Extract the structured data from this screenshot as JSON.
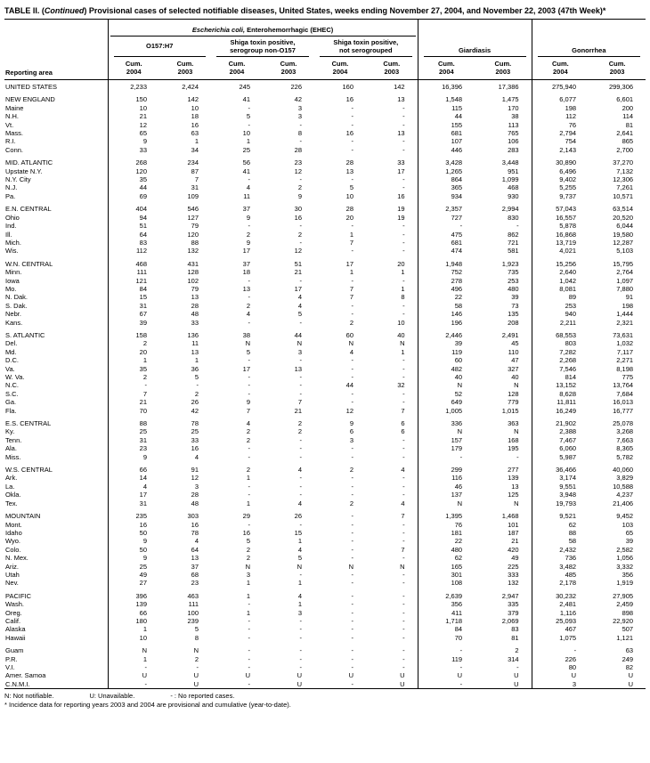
{
  "title": {
    "part1": "TABLE II. (",
    "continued": "Continued",
    "part2": ") Provisional cases of selected notifiable diseases, United States, weeks ending November 27, 2004, and November 22, 2003 (47th Week)*"
  },
  "table": {
    "header": {
      "reporting_area": "Reporting area",
      "ehec_italic": "Escherichia coli,",
      "ehec_rest": " Enterohemorrhagic (EHEC)",
      "sub_o157": "O157:H7",
      "sub_non_o157_line1": "Shiga toxin positive,",
      "sub_non_o157_line2": "serogroup non-O157",
      "sub_not_sero_line1": "Shiga toxin positive,",
      "sub_not_sero_line2": "not serogrouped",
      "giardiasis": "Giardiasis",
      "gonorrhea": "Gonorrhea",
      "cum": "Cum.",
      "years": [
        "2004",
        "2003"
      ]
    },
    "rows": [
      {
        "a": "UNITED STATES",
        "v": [
          "2,233",
          "2,424",
          "245",
          "226",
          "160",
          "142",
          "16,396",
          "17,386",
          "275,940",
          "299,306"
        ]
      },
      {
        "gap": true
      },
      {
        "a": "NEW ENGLAND",
        "v": [
          "150",
          "142",
          "41",
          "42",
          "16",
          "13",
          "1,548",
          "1,475",
          "6,077",
          "6,601"
        ]
      },
      {
        "a": "Maine",
        "v": [
          "10",
          "10",
          "-",
          "3",
          "-",
          "-",
          "115",
          "170",
          "198",
          "200"
        ]
      },
      {
        "a": "N.H.",
        "v": [
          "21",
          "18",
          "5",
          "3",
          "-",
          "-",
          "44",
          "38",
          "112",
          "114"
        ]
      },
      {
        "a": "Vt.",
        "v": [
          "12",
          "16",
          "-",
          "-",
          "-",
          "-",
          "155",
          "113",
          "76",
          "81"
        ]
      },
      {
        "a": "Mass.",
        "v": [
          "65",
          "63",
          "10",
          "8",
          "16",
          "13",
          "681",
          "765",
          "2,794",
          "2,641"
        ]
      },
      {
        "a": "R.I.",
        "v": [
          "9",
          "1",
          "1",
          "-",
          "-",
          "-",
          "107",
          "106",
          "754",
          "865"
        ]
      },
      {
        "a": "Conn.",
        "v": [
          "33",
          "34",
          "25",
          "28",
          "-",
          "-",
          "446",
          "283",
          "2,143",
          "2,700"
        ]
      },
      {
        "gap": true
      },
      {
        "a": "MID. ATLANTIC",
        "v": [
          "268",
          "234",
          "56",
          "23",
          "28",
          "33",
          "3,428",
          "3,448",
          "30,890",
          "37,270"
        ]
      },
      {
        "a": "Upstate N.Y.",
        "v": [
          "120",
          "87",
          "41",
          "12",
          "13",
          "17",
          "1,265",
          "951",
          "6,496",
          "7,132"
        ]
      },
      {
        "a": "N.Y. City",
        "v": [
          "35",
          "7",
          "-",
          "-",
          "-",
          "-",
          "864",
          "1,099",
          "9,402",
          "12,306"
        ]
      },
      {
        "a": "N.J.",
        "v": [
          "44",
          "31",
          "4",
          "2",
          "5",
          "-",
          "365",
          "468",
          "5,255",
          "7,261"
        ]
      },
      {
        "a": "Pa.",
        "v": [
          "69",
          "109",
          "11",
          "9",
          "10",
          "16",
          "934",
          "930",
          "9,737",
          "10,571"
        ]
      },
      {
        "gap": true
      },
      {
        "a": "E.N. CENTRAL",
        "v": [
          "404",
          "546",
          "37",
          "30",
          "28",
          "19",
          "2,357",
          "2,994",
          "57,043",
          "63,514"
        ]
      },
      {
        "a": "Ohio",
        "v": [
          "94",
          "127",
          "9",
          "16",
          "20",
          "19",
          "727",
          "830",
          "16,557",
          "20,520"
        ]
      },
      {
        "a": "Ind.",
        "v": [
          "51",
          "79",
          "-",
          "-",
          "-",
          "-",
          "-",
          "-",
          "5,878",
          "6,044"
        ]
      },
      {
        "a": "Ill.",
        "v": [
          "64",
          "120",
          "2",
          "2",
          "1",
          "-",
          "475",
          "862",
          "16,868",
          "19,580"
        ]
      },
      {
        "a": "Mich.",
        "v": [
          "83",
          "88",
          "9",
          "-",
          "7",
          "-",
          "681",
          "721",
          "13,719",
          "12,287"
        ]
      },
      {
        "a": "Wis.",
        "v": [
          "112",
          "132",
          "17",
          "12",
          "-",
          "-",
          "474",
          "581",
          "4,021",
          "5,103"
        ]
      },
      {
        "gap": true
      },
      {
        "a": "W.N. CENTRAL",
        "v": [
          "468",
          "431",
          "37",
          "51",
          "17",
          "20",
          "1,948",
          "1,923",
          "15,256",
          "15,795"
        ]
      },
      {
        "a": "Minn.",
        "v": [
          "111",
          "128",
          "18",
          "21",
          "1",
          "1",
          "752",
          "735",
          "2,640",
          "2,764"
        ]
      },
      {
        "a": "Iowa",
        "v": [
          "121",
          "102",
          "-",
          "-",
          "-",
          "-",
          "278",
          "253",
          "1,042",
          "1,097"
        ]
      },
      {
        "a": "Mo.",
        "v": [
          "84",
          "79",
          "13",
          "17",
          "7",
          "1",
          "496",
          "480",
          "8,081",
          "7,880"
        ]
      },
      {
        "a": "N. Dak.",
        "v": [
          "15",
          "13",
          "-",
          "4",
          "7",
          "8",
          "22",
          "39",
          "89",
          "91"
        ]
      },
      {
        "a": "S. Dak.",
        "v": [
          "31",
          "28",
          "2",
          "4",
          "-",
          "-",
          "58",
          "73",
          "253",
          "198"
        ]
      },
      {
        "a": "Nebr.",
        "v": [
          "67",
          "48",
          "4",
          "5",
          "-",
          "-",
          "146",
          "135",
          "940",
          "1,444"
        ]
      },
      {
        "a": "Kans.",
        "v": [
          "39",
          "33",
          "-",
          "-",
          "2",
          "10",
          "196",
          "208",
          "2,211",
          "2,321"
        ]
      },
      {
        "gap": true
      },
      {
        "a": "S. ATLANTIC",
        "v": [
          "158",
          "136",
          "38",
          "44",
          "60",
          "40",
          "2,446",
          "2,491",
          "68,553",
          "73,631"
        ]
      },
      {
        "a": "Del.",
        "v": [
          "2",
          "11",
          "N",
          "N",
          "N",
          "N",
          "39",
          "45",
          "803",
          "1,032"
        ]
      },
      {
        "a": "Md.",
        "v": [
          "20",
          "13",
          "5",
          "3",
          "4",
          "1",
          "119",
          "110",
          "7,282",
          "7,117"
        ]
      },
      {
        "a": "D.C.",
        "v": [
          "1",
          "1",
          "-",
          "-",
          "-",
          "-",
          "60",
          "47",
          "2,268",
          "2,271"
        ]
      },
      {
        "a": "Va.",
        "v": [
          "35",
          "36",
          "17",
          "13",
          "-",
          "-",
          "482",
          "327",
          "7,546",
          "8,198"
        ]
      },
      {
        "a": "W. Va.",
        "v": [
          "2",
          "5",
          "-",
          "-",
          "-",
          "-",
          "40",
          "40",
          "814",
          "775"
        ]
      },
      {
        "a": "N.C.",
        "v": [
          "-",
          "-",
          "-",
          "-",
          "44",
          "32",
          "N",
          "N",
          "13,152",
          "13,764"
        ]
      },
      {
        "a": "S.C.",
        "v": [
          "7",
          "2",
          "-",
          "-",
          "-",
          "-",
          "52",
          "128",
          "8,628",
          "7,684"
        ]
      },
      {
        "a": "Ga.",
        "v": [
          "21",
          "26",
          "9",
          "7",
          "-",
          "-",
          "649",
          "779",
          "11,811",
          "16,013"
        ]
      },
      {
        "a": "Fla.",
        "v": [
          "70",
          "42",
          "7",
          "21",
          "12",
          "7",
          "1,005",
          "1,015",
          "16,249",
          "16,777"
        ]
      },
      {
        "gap": true
      },
      {
        "a": "E.S. CENTRAL",
        "v": [
          "88",
          "78",
          "4",
          "2",
          "9",
          "6",
          "336",
          "363",
          "21,902",
          "25,078"
        ]
      },
      {
        "a": "Ky.",
        "v": [
          "25",
          "25",
          "2",
          "2",
          "6",
          "6",
          "N",
          "N",
          "2,388",
          "3,268"
        ]
      },
      {
        "a": "Tenn.",
        "v": [
          "31",
          "33",
          "2",
          "-",
          "3",
          "-",
          "157",
          "168",
          "7,467",
          "7,663"
        ]
      },
      {
        "a": "Ala.",
        "v": [
          "23",
          "16",
          "-",
          "-",
          "-",
          "-",
          "179",
          "195",
          "6,060",
          "8,365"
        ]
      },
      {
        "a": "Miss.",
        "v": [
          "9",
          "4",
          "-",
          "-",
          "-",
          "-",
          "-",
          "-",
          "5,987",
          "5,782"
        ]
      },
      {
        "gap": true
      },
      {
        "a": "W.S. CENTRAL",
        "v": [
          "66",
          "91",
          "2",
          "4",
          "2",
          "4",
          "299",
          "277",
          "36,466",
          "40,060"
        ]
      },
      {
        "a": "Ark.",
        "v": [
          "14",
          "12",
          "1",
          "-",
          "-",
          "-",
          "116",
          "139",
          "3,174",
          "3,829"
        ]
      },
      {
        "a": "La.",
        "v": [
          "4",
          "3",
          "-",
          "-",
          "-",
          "-",
          "46",
          "13",
          "9,551",
          "10,588"
        ]
      },
      {
        "a": "Okla.",
        "v": [
          "17",
          "28",
          "-",
          "-",
          "-",
          "-",
          "137",
          "125",
          "3,948",
          "4,237"
        ]
      },
      {
        "a": "Tex.",
        "v": [
          "31",
          "48",
          "1",
          "4",
          "2",
          "4",
          "N",
          "N",
          "19,793",
          "21,406"
        ]
      },
      {
        "gap": true
      },
      {
        "a": "MOUNTAIN",
        "v": [
          "235",
          "303",
          "29",
          "26",
          "-",
          "7",
          "1,395",
          "1,468",
          "9,521",
          "9,452"
        ]
      },
      {
        "a": "Mont.",
        "v": [
          "16",
          "16",
          "-",
          "-",
          "-",
          "-",
          "76",
          "101",
          "62",
          "103"
        ]
      },
      {
        "a": "Idaho",
        "v": [
          "50",
          "78",
          "16",
          "15",
          "-",
          "-",
          "181",
          "187",
          "88",
          "65"
        ]
      },
      {
        "a": "Wyo.",
        "v": [
          "9",
          "4",
          "5",
          "1",
          "-",
          "-",
          "22",
          "21",
          "58",
          "39"
        ]
      },
      {
        "a": "Colo.",
        "v": [
          "50",
          "64",
          "2",
          "4",
          "-",
          "7",
          "480",
          "420",
          "2,432",
          "2,582"
        ]
      },
      {
        "a": "N. Mex.",
        "v": [
          "9",
          "13",
          "2",
          "5",
          "-",
          "-",
          "62",
          "49",
          "736",
          "1,056"
        ]
      },
      {
        "a": "Ariz.",
        "v": [
          "25",
          "37",
          "N",
          "N",
          "N",
          "N",
          "165",
          "225",
          "3,482",
          "3,332"
        ]
      },
      {
        "a": "Utah",
        "v": [
          "49",
          "68",
          "3",
          "-",
          "-",
          "-",
          "301",
          "333",
          "485",
          "356"
        ]
      },
      {
        "a": "Nev.",
        "v": [
          "27",
          "23",
          "1",
          "1",
          "-",
          "-",
          "108",
          "132",
          "2,178",
          "1,919"
        ]
      },
      {
        "gap": true
      },
      {
        "a": "PACIFIC",
        "v": [
          "396",
          "463",
          "1",
          "4",
          "-",
          "-",
          "2,639",
          "2,947",
          "30,232",
          "27,905"
        ]
      },
      {
        "a": "Wash.",
        "v": [
          "139",
          "111",
          "-",
          "1",
          "-",
          "-",
          "356",
          "335",
          "2,481",
          "2,459"
        ]
      },
      {
        "a": "Oreg.",
        "v": [
          "66",
          "100",
          "1",
          "3",
          "-",
          "-",
          "411",
          "379",
          "1,116",
          "898"
        ]
      },
      {
        "a": "Calif.",
        "v": [
          "180",
          "239",
          "-",
          "-",
          "-",
          "-",
          "1,718",
          "2,069",
          "25,093",
          "22,920"
        ]
      },
      {
        "a": "Alaska",
        "v": [
          "1",
          "5",
          "-",
          "-",
          "-",
          "-",
          "84",
          "83",
          "467",
          "507"
        ]
      },
      {
        "a": "Hawaii",
        "v": [
          "10",
          "8",
          "-",
          "-",
          "-",
          "-",
          "70",
          "81",
          "1,075",
          "1,121"
        ]
      },
      {
        "gap": true
      },
      {
        "a": "Guam",
        "v": [
          "N",
          "N",
          "-",
          "-",
          "-",
          "-",
          "-",
          "2",
          "-",
          "63"
        ]
      },
      {
        "a": "P.R.",
        "v": [
          "1",
          "2",
          "-",
          "-",
          "-",
          "-",
          "119",
          "314",
          "226",
          "249"
        ]
      },
      {
        "a": "V.I.",
        "v": [
          "-",
          "-",
          "-",
          "-",
          "-",
          "-",
          "-",
          "-",
          "80",
          "82"
        ]
      },
      {
        "a": "Amer. Samoa",
        "v": [
          "U",
          "U",
          "U",
          "U",
          "U",
          "U",
          "U",
          "U",
          "U",
          "U"
        ]
      },
      {
        "a": "C.N.M.I.",
        "v": [
          "-",
          "U",
          "-",
          "U",
          "-",
          "U",
          "-",
          "U",
          "3",
          "U"
        ]
      }
    ]
  },
  "footnotes": {
    "legend": [
      "N: Not notifiable.",
      "U: Unavailable.",
      "- : No reported cases."
    ],
    "note": "* Incidence data for reporting years 2003 and 2004 are provisional and cumulative (year-to-date)."
  }
}
